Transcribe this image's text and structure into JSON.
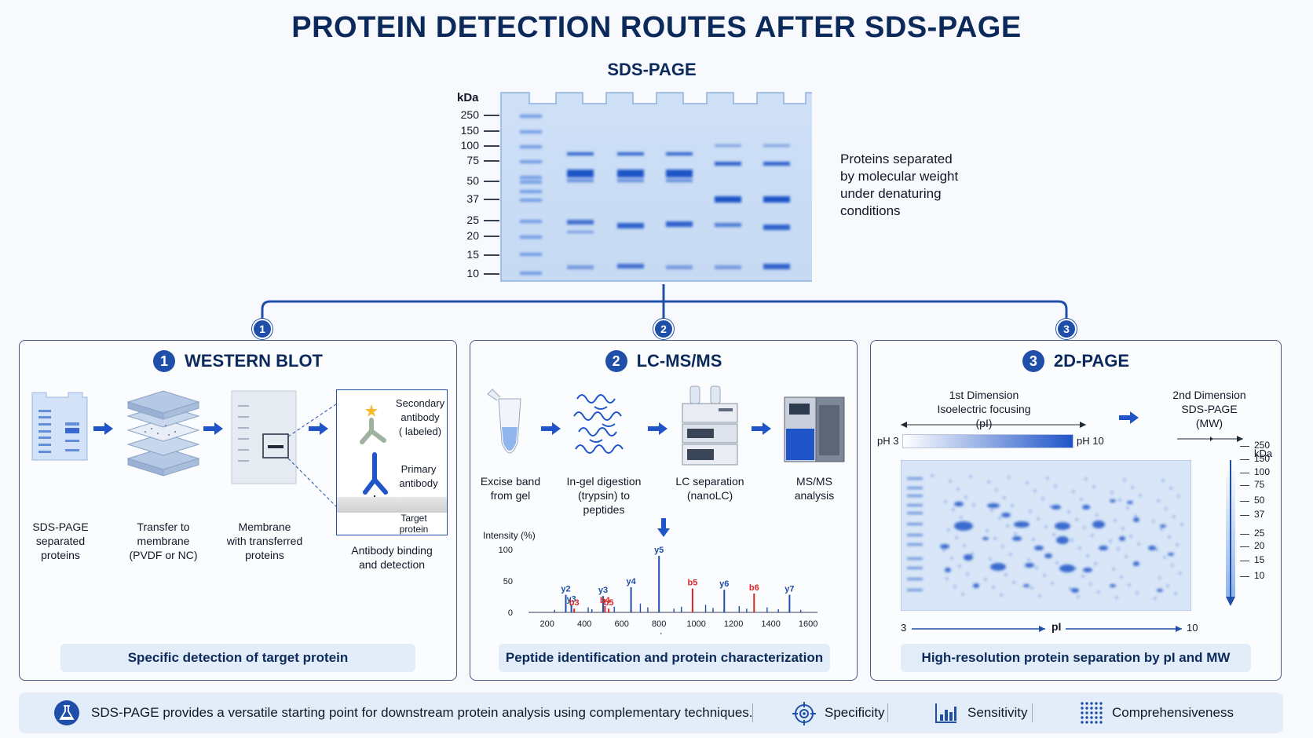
{
  "title": "PROTEIN DETECTION ROUTES AFTER SDS-PAGE",
  "gel": {
    "title": "SDS-PAGE",
    "kda_header": "kDa",
    "markers": [
      "250",
      "150",
      "100",
      "75",
      "50",
      "37",
      "25",
      "20",
      "15",
      "10"
    ],
    "description": [
      "Proteins separated",
      "by molecular weight",
      "under denaturing",
      "conditions"
    ]
  },
  "routes": [
    "1",
    "2",
    "3"
  ],
  "western": {
    "number": "1",
    "title": "WESTERN BLOT",
    "steps": [
      [
        "SDS-PAGE",
        "separated",
        "proteins"
      ],
      [
        "Transfer to",
        "membrane",
        "(PVDF or NC)"
      ],
      [
        "Membrane",
        "with transferred",
        "proteins"
      ],
      [
        "Antibody binding",
        "and detection"
      ]
    ],
    "inset": {
      "secondary": [
        "Secondary",
        "antibody",
        "( labeled)"
      ],
      "primary": [
        "Primary",
        "antibody"
      ],
      "target": [
        "Target",
        "protein"
      ]
    },
    "summary": "Specific detection of target protein"
  },
  "lcms": {
    "number": "2",
    "title": "LC-MS/MS",
    "steps": [
      [
        "Excise band",
        "from gel"
      ],
      [
        "In-gel digestion",
        "(trypsin) to",
        "peptides"
      ],
      [
        "LC separation",
        "(nanoLC)"
      ],
      [
        "MS/MS",
        "analysis"
      ]
    ],
    "summary": "Peptide identification and protein characterization"
  },
  "chart_data": {
    "type": "bar",
    "ylabel": "Intensity (%)",
    "xlabel": "m/z",
    "xlim": [
      100,
      1650
    ],
    "ylim": [
      0,
      100
    ],
    "xticks": [
      200,
      400,
      600,
      800,
      1000,
      1200,
      1400,
      1600
    ],
    "yticks": [
      0,
      50,
      100
    ],
    "peaks": [
      {
        "x": 300,
        "y": 28,
        "label": "y2",
        "color": "#1f4fa8"
      },
      {
        "x": 330,
        "y": 12,
        "label": "y3",
        "color": "#1f4fa8"
      },
      {
        "x": 345,
        "y": 6,
        "label": "b3",
        "color": "#d62828"
      },
      {
        "x": 500,
        "y": 26,
        "label": "y3",
        "color": "#1f4fa8"
      },
      {
        "x": 510,
        "y": 10,
        "label": "b4",
        "color": "#d62828"
      },
      {
        "x": 530,
        "y": 6,
        "label": "b5",
        "color": "#d62828"
      },
      {
        "x": 650,
        "y": 40,
        "label": "y4",
        "color": "#1f4fa8"
      },
      {
        "x": 800,
        "y": 90,
        "label": "y5",
        "color": "#1f4fa8"
      },
      {
        "x": 980,
        "y": 38,
        "label": "b5",
        "color": "#d62828"
      },
      {
        "x": 1150,
        "y": 36,
        "label": "y6",
        "color": "#1f4fa8"
      },
      {
        "x": 1310,
        "y": 30,
        "label": "b6",
        "color": "#d62828"
      },
      {
        "x": 1500,
        "y": 28,
        "label": "y7",
        "color": "#1f4fa8"
      },
      {
        "x": 240,
        "y": 4
      },
      {
        "x": 420,
        "y": 8
      },
      {
        "x": 440,
        "y": 5
      },
      {
        "x": 560,
        "y": 9
      },
      {
        "x": 700,
        "y": 14
      },
      {
        "x": 740,
        "y": 8
      },
      {
        "x": 880,
        "y": 6
      },
      {
        "x": 920,
        "y": 9
      },
      {
        "x": 1050,
        "y": 12
      },
      {
        "x": 1090,
        "y": 7
      },
      {
        "x": 1230,
        "y": 10
      },
      {
        "x": 1270,
        "y": 6
      },
      {
        "x": 1380,
        "y": 8
      },
      {
        "x": 1440,
        "y": 5
      },
      {
        "x": 1560,
        "y": 4
      }
    ]
  },
  "twod": {
    "number": "3",
    "title": "2D-PAGE",
    "dim1": [
      "1st Dimension",
      "Isoelectric focusing",
      "(pI)"
    ],
    "dim2": [
      "2nd Dimension",
      "SDS-PAGE",
      "(MW)"
    ],
    "ph_low": "pH 3",
    "ph_high": "pH 10",
    "kda_header": "kDa",
    "markers": [
      "250",
      "150",
      "100",
      "75",
      "50",
      "37",
      "25",
      "20",
      "15",
      "10"
    ],
    "pi_axis": {
      "low": "3",
      "label": "pI",
      "high": "10"
    },
    "summary": "High-resolution protein separation by pI and MW"
  },
  "footer": {
    "text": "SDS-PAGE provides a versatile starting point for downstream protein analysis using complementary techniques.",
    "features": [
      "Specificity",
      "Sensitivity",
      "Comprehensiveness"
    ]
  },
  "colors": {
    "navy": "#0b2a5b",
    "accent": "#1f4fa8",
    "band": "#2a62d6",
    "red": "#d62828"
  }
}
